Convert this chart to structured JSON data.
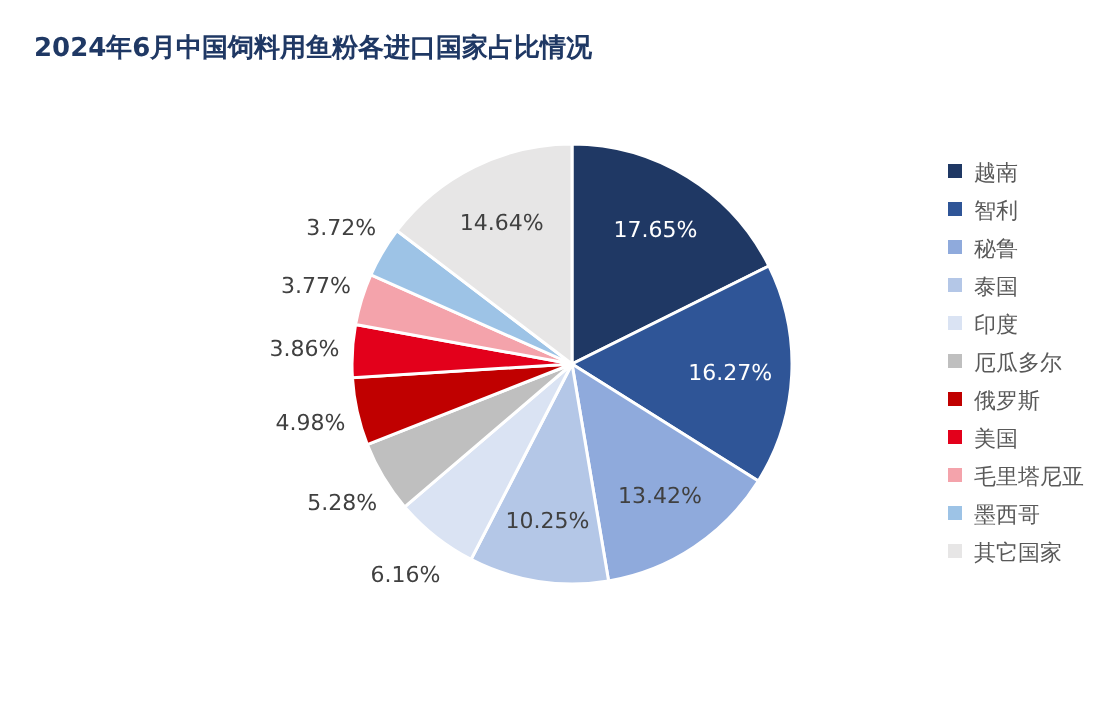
{
  "chart_data": {
    "type": "pie",
    "title": "2024年6月中国饲料用鱼粉各进口国家占比情况",
    "categories": [
      "越南",
      "智利",
      "秘鲁",
      "泰国",
      "印度",
      "厄瓜多尔",
      "俄罗斯",
      "美国",
      "毛里塔尼亚",
      "墨西哥",
      "其它国家"
    ],
    "values": [
      17.65,
      16.27,
      13.42,
      10.25,
      6.16,
      5.28,
      4.98,
      3.86,
      3.77,
      3.72,
      14.64
    ],
    "colors": [
      "#1f3864",
      "#2f5597",
      "#8faadc",
      "#b4c7e7",
      "#dae3f3",
      "#bfbfbf",
      "#c00000",
      "#e3001b",
      "#f4a3ab",
      "#9dc3e6",
      "#e7e6e6"
    ],
    "value_labels": [
      "17.65%",
      "16.27%",
      "13.42%",
      "10.25%",
      "6.16%",
      "5.28%",
      "4.98%",
      "3.86%",
      "3.77%",
      "3.72%",
      "14.64%"
    ],
    "legend": "right"
  }
}
